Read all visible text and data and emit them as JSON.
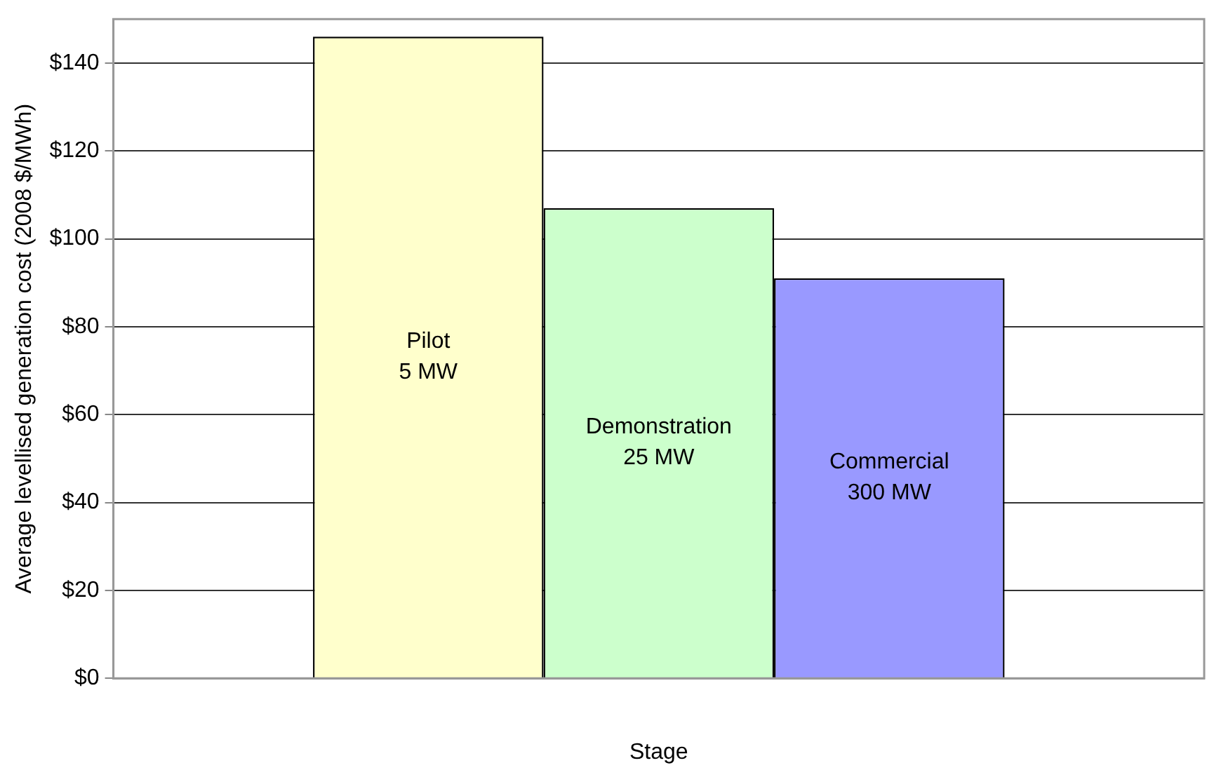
{
  "chart_data": {
    "type": "bar",
    "xlabel": "Stage",
    "ylabel": "Average levellised generation cost (2008 $/MWh)",
    "categories": [
      null
    ],
    "series": [
      {
        "name": "Pilot\n5 MW",
        "color": "#ffffcc",
        "values": [
          146
        ]
      },
      {
        "name": "Demonstration\n25 MW",
        "color": "#ccffcc",
        "values": [
          107
        ]
      },
      {
        "name": "Commercial\n300 MW",
        "color": "#9999ff",
        "values": [
          91
        ]
      }
    ],
    "ylim": [
      0,
      150
    ],
    "yticks": [
      {
        "value": 0,
        "label": "$0"
      },
      {
        "value": 20,
        "label": "$20"
      },
      {
        "value": 40,
        "label": "$40"
      },
      {
        "value": 60,
        "label": "$60"
      },
      {
        "value": 80,
        "label": "$80"
      },
      {
        "value": 100,
        "label": "$100"
      },
      {
        "value": 120,
        "label": "$120"
      },
      {
        "value": 140,
        "label": "$140"
      }
    ],
    "grid": "y",
    "legend": false
  }
}
